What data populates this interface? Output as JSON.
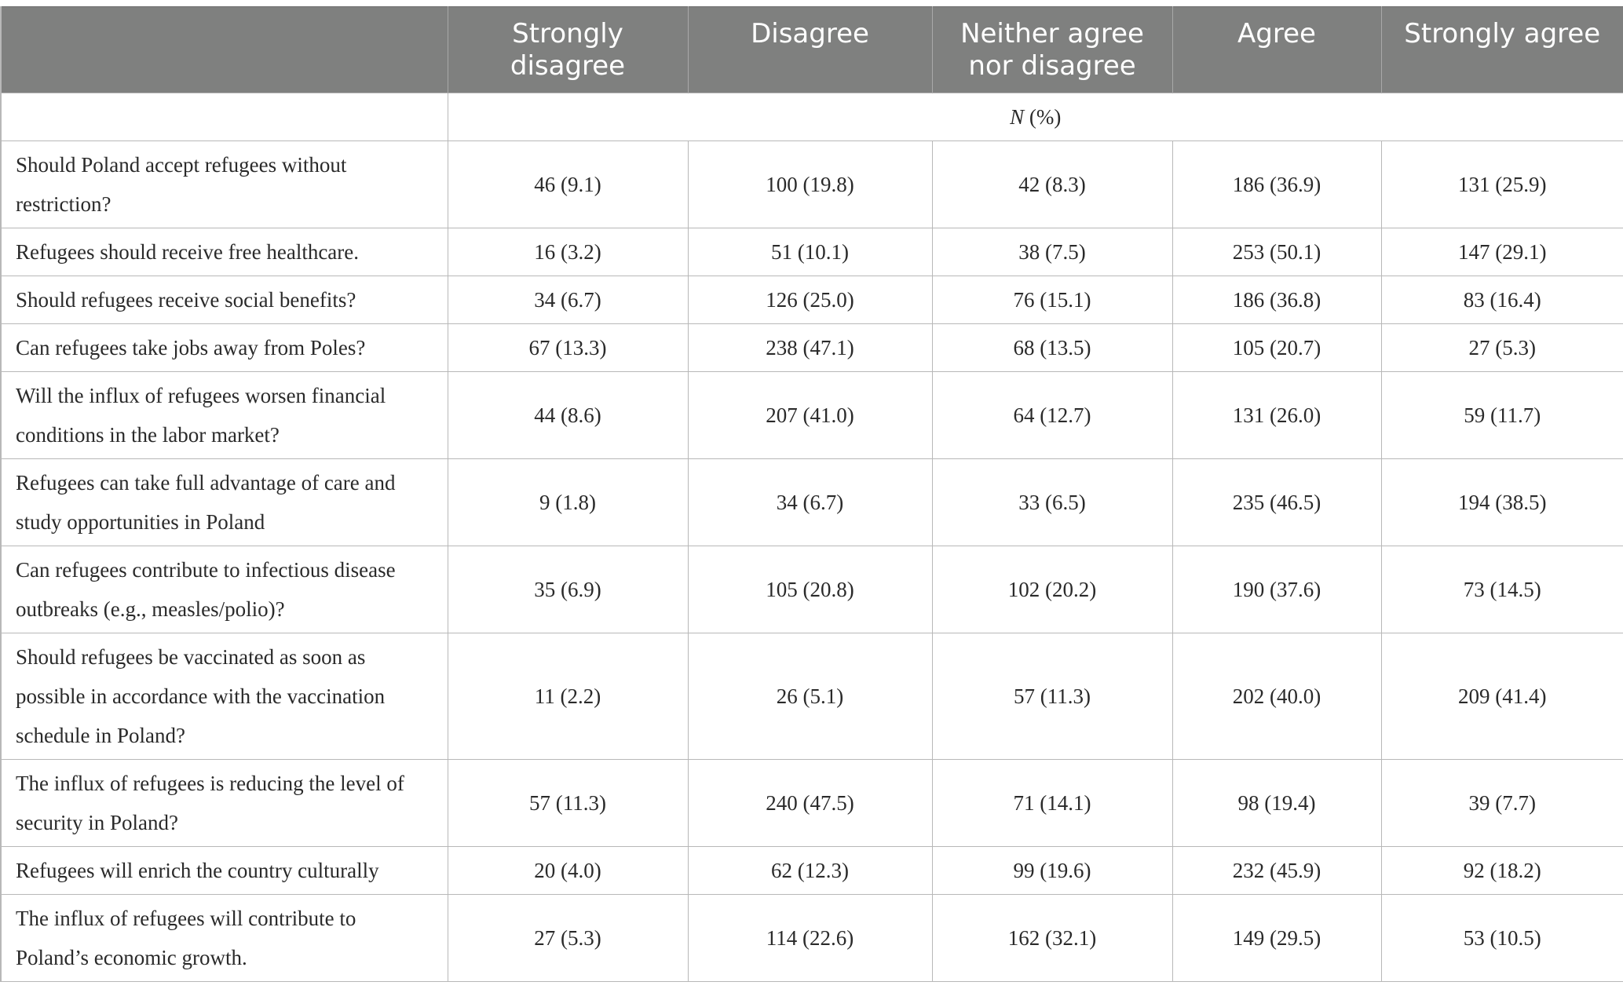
{
  "table": {
    "columns": [
      "",
      "Strongly disagree",
      "Disagree",
      "Neither agree nor disagree",
      "Agree",
      "Strongly agree"
    ],
    "unit_label_italic": "N",
    "unit_label_rest": " (%)",
    "rows": [
      {
        "question": "Should Poland accept refugees without restriction?",
        "values": [
          "46 (9.1)",
          "100 (19.8)",
          "42 (8.3)",
          "186 (36.9)",
          "131 (25.9)"
        ]
      },
      {
        "question": "Refugees should receive free healthcare.",
        "values": [
          "16 (3.2)",
          "51 (10.1)",
          "38 (7.5)",
          "253 (50.1)",
          "147 (29.1)"
        ]
      },
      {
        "question": "Should refugees receive social benefits?",
        "values": [
          "34 (6.7)",
          "126 (25.0)",
          "76 (15.1)",
          "186 (36.8)",
          "83 (16.4)"
        ]
      },
      {
        "question": "Can refugees take jobs away from Poles?",
        "values": [
          "67 (13.3)",
          "238 (47.1)",
          "68 (13.5)",
          "105 (20.7)",
          "27 (5.3)"
        ]
      },
      {
        "question": "Will the influx of refugees worsen financial conditions in the labor market?",
        "values": [
          "44 (8.6)",
          "207 (41.0)",
          "64 (12.7)",
          "131 (26.0)",
          "59 (11.7)"
        ]
      },
      {
        "question": "Refugees can take full advantage of care and study opportunities in Poland",
        "values": [
          "9 (1.8)",
          "34 (6.7)",
          "33 (6.5)",
          "235 (46.5)",
          "194 (38.5)"
        ]
      },
      {
        "question": "Can refugees contribute to infectious disease outbreaks (e.g., measles/polio)?",
        "values": [
          "35 (6.9)",
          "105 (20.8)",
          "102 (20.2)",
          "190 (37.6)",
          "73 (14.5)"
        ]
      },
      {
        "question": "Should refugees be vaccinated as soon as possible in accordance with the vaccination schedule in Poland?",
        "values": [
          "11 (2.2)",
          "26 (5.1)",
          "57 (11.3)",
          "202 (40.0)",
          "209 (41.4)"
        ]
      },
      {
        "question": "The influx of refugees is reducing the level of security in Poland?",
        "values": [
          "57 (11.3)",
          "240 (47.5)",
          "71 (14.1)",
          "98 (19.4)",
          "39 (7.7)"
        ]
      },
      {
        "question": "Refugees will enrich the country culturally",
        "values": [
          "20 (4.0)",
          "62 (12.3)",
          "99 (19.6)",
          "232 (45.9)",
          "92 (18.2)"
        ]
      },
      {
        "question": "The influx of refugees will contribute to Poland’s economic growth.",
        "values": [
          "27 (5.3)",
          "114 (22.6)",
          "162 (32.1)",
          "149 (29.5)",
          "53 (10.5)"
        ]
      }
    ]
  },
  "colors": {
    "header_bg": "#7f807f",
    "header_text": "#ffffff",
    "grid": "#b8b8b8"
  }
}
